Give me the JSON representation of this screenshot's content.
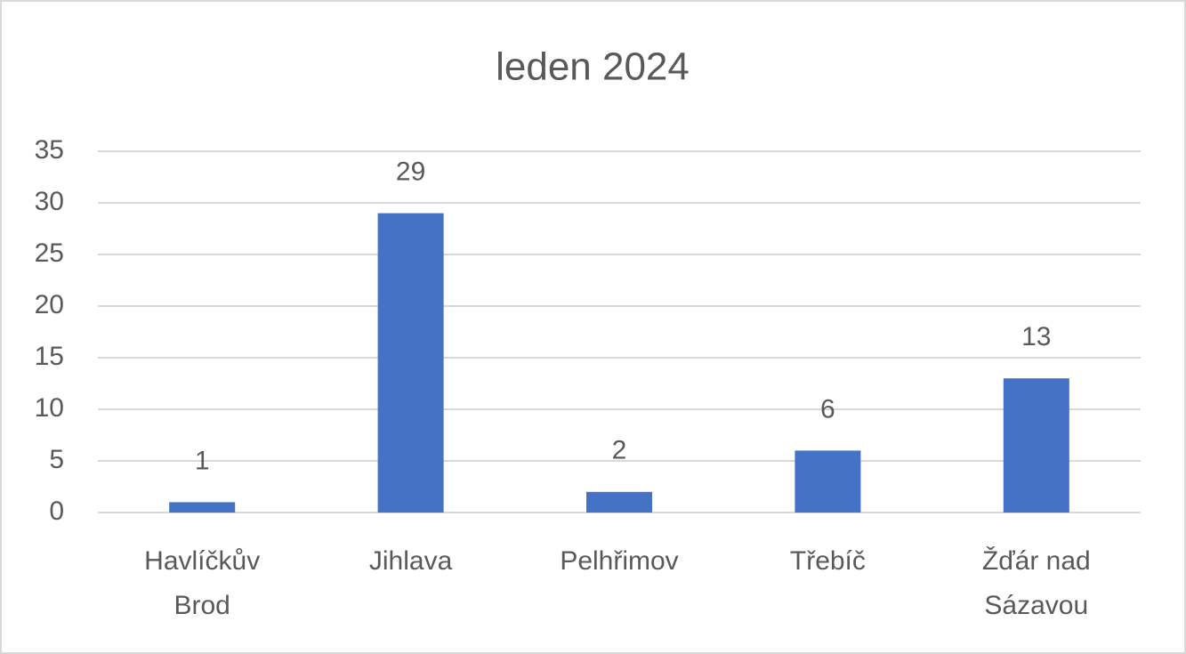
{
  "chart_data": {
    "type": "bar",
    "title": "leden 2024",
    "categories": [
      "Havlíčkův Brod",
      "Jihlava",
      "Pelhřimov",
      "Třebíč",
      "Žďár nad Sázavou"
    ],
    "values": [
      1,
      29,
      2,
      6,
      13
    ],
    "color": "#4472c4",
    "ylim": [
      0,
      35
    ],
    "yticks": [
      0,
      5,
      10,
      15,
      20,
      25,
      30,
      35
    ],
    "grid": true
  }
}
